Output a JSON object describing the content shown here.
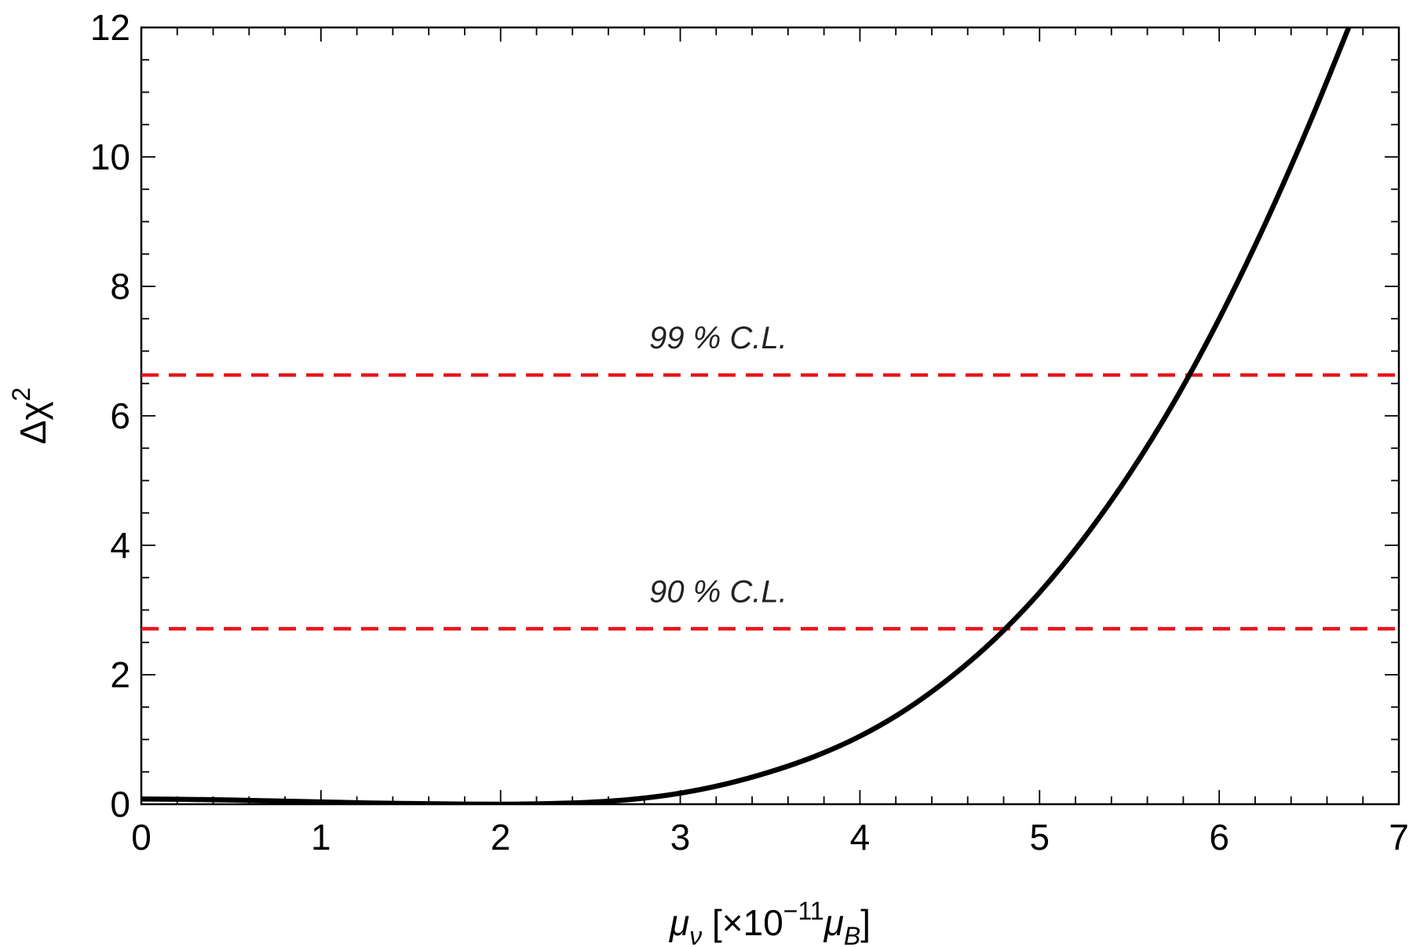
{
  "chart_data": {
    "type": "line",
    "xlabel": {
      "symbol": "μ",
      "symbol_sub": "ν",
      "factor_prefix": " [×10",
      "factor_exp": "−11",
      "unit": "μ",
      "unit_sub": "B",
      "close": "]"
    },
    "ylabel": {
      "symbol": "Δχ",
      "exp": "2"
    },
    "xlim": [
      0,
      7
    ],
    "ylim": [
      0,
      12
    ],
    "x_ticks": [
      "0",
      "1",
      "2",
      "3",
      "4",
      "5",
      "6",
      "7"
    ],
    "y_ticks": [
      "0",
      "2",
      "4",
      "6",
      "8",
      "10",
      "12"
    ],
    "grid": false,
    "series": [
      {
        "color": "#000000",
        "points": [
          [
            0.0,
            0.08
          ],
          [
            0.25,
            0.075
          ],
          [
            0.5,
            0.065
          ],
          [
            0.75,
            0.05
          ],
          [
            1.0,
            0.035
          ],
          [
            1.25,
            0.02
          ],
          [
            1.5,
            0.01
          ],
          [
            1.75,
            0.003
          ],
          [
            2.0,
            0.0
          ],
          [
            2.25,
            0.008
          ],
          [
            2.5,
            0.03
          ],
          [
            2.75,
            0.08
          ],
          [
            3.0,
            0.17
          ],
          [
            3.25,
            0.31
          ],
          [
            3.5,
            0.5
          ],
          [
            3.75,
            0.74
          ],
          [
            4.0,
            1.05
          ],
          [
            4.25,
            1.45
          ],
          [
            4.5,
            1.95
          ],
          [
            4.75,
            2.55
          ],
          [
            5.0,
            3.27
          ],
          [
            5.25,
            4.12
          ],
          [
            5.5,
            5.1
          ],
          [
            5.75,
            6.22
          ],
          [
            6.0,
            7.5
          ],
          [
            6.25,
            8.93
          ],
          [
            6.5,
            10.5
          ],
          [
            6.75,
            12.2
          ]
        ]
      }
    ],
    "reference_lines": [
      {
        "y": 6.63,
        "label": "99 % C.L.",
        "color": "#e8141a",
        "style": "dashed"
      },
      {
        "y": 2.71,
        "label": "90 % C.L.",
        "color": "#e8141a",
        "style": "dashed"
      }
    ]
  }
}
